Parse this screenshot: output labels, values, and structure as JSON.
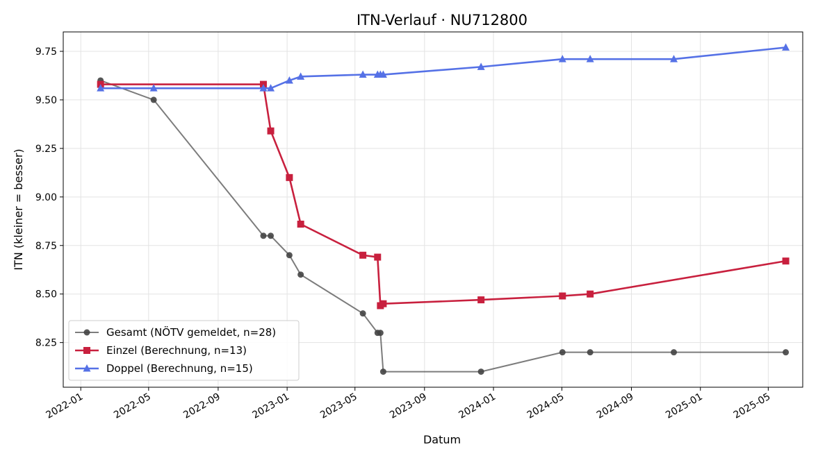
{
  "chart_data": {
    "type": "line",
    "title": "ITN-Verlauf · NU712800",
    "xlabel": "Datum",
    "ylabel": "ITN  (kleiner = besser)",
    "x_axis": "date",
    "xlim": [
      "2021-12-01",
      "2025-07-01"
    ],
    "ylim": [
      8.02,
      9.85
    ],
    "yticks": [
      8.25,
      8.5,
      8.75,
      9.0,
      9.25,
      9.5,
      9.75
    ],
    "ytick_labels": [
      "8.25",
      "8.50",
      "8.75",
      "9.00",
      "9.25",
      "9.50",
      "9.75"
    ],
    "xticks": [
      "2022-01-01",
      "2022-05-01",
      "2022-09-01",
      "2023-01-01",
      "2023-05-01",
      "2023-09-01",
      "2024-01-01",
      "2024-05-01",
      "2024-09-01",
      "2025-01-01",
      "2025-05-01"
    ],
    "xtick_labels": [
      "2022-01",
      "2022-05",
      "2022-09",
      "2023-01",
      "2023-05",
      "2023-09",
      "2024-01",
      "2024-05",
      "2024-09",
      "2025-01",
      "2025-05"
    ],
    "grid": true,
    "legend_position": "lower-left",
    "series": [
      {
        "name": "Gesamt (NÖTV gemeldet, n=28)",
        "color": "#444444",
        "marker": "circle",
        "points": [
          {
            "x": "2022-02-05",
            "y": 9.6
          },
          {
            "x": "2022-05-10",
            "y": 9.5
          },
          {
            "x": "2022-11-20",
            "y": 8.8
          },
          {
            "x": "2022-12-03",
            "y": 8.8
          },
          {
            "x": "2023-01-05",
            "y": 8.7
          },
          {
            "x": "2023-01-25",
            "y": 8.6
          },
          {
            "x": "2023-05-15",
            "y": 8.4
          },
          {
            "x": "2023-06-10",
            "y": 8.3
          },
          {
            "x": "2023-06-15",
            "y": 8.3
          },
          {
            "x": "2023-06-20",
            "y": 8.1
          },
          {
            "x": "2023-12-10",
            "y": 8.1
          },
          {
            "x": "2024-05-02",
            "y": 8.2
          },
          {
            "x": "2024-06-20",
            "y": 8.2
          },
          {
            "x": "2024-11-15",
            "y": 8.2
          },
          {
            "x": "2025-06-01",
            "y": 8.2
          }
        ]
      },
      {
        "name": "Einzel (Berechnung, n=13)",
        "color": "#c8203e",
        "marker": "square",
        "points": [
          {
            "x": "2022-02-05",
            "y": 9.58
          },
          {
            "x": "2022-11-20",
            "y": 9.58
          },
          {
            "x": "2022-12-03",
            "y": 9.34
          },
          {
            "x": "2023-01-05",
            "y": 9.1
          },
          {
            "x": "2023-01-25",
            "y": 8.86
          },
          {
            "x": "2023-05-15",
            "y": 8.7
          },
          {
            "x": "2023-06-10",
            "y": 8.69
          },
          {
            "x": "2023-06-15",
            "y": 8.44
          },
          {
            "x": "2023-06-20",
            "y": 8.45
          },
          {
            "x": "2023-12-10",
            "y": 8.47
          },
          {
            "x": "2024-05-02",
            "y": 8.49
          },
          {
            "x": "2024-06-20",
            "y": 8.5
          },
          {
            "x": "2025-06-01",
            "y": 8.67
          }
        ]
      },
      {
        "name": "Doppel (Berechnung, n=15)",
        "color": "#5571e6",
        "marker": "triangle",
        "points": [
          {
            "x": "2022-02-05",
            "y": 9.56
          },
          {
            "x": "2022-05-10",
            "y": 9.56
          },
          {
            "x": "2022-11-20",
            "y": 9.56
          },
          {
            "x": "2022-12-03",
            "y": 9.56
          },
          {
            "x": "2023-01-05",
            "y": 9.6
          },
          {
            "x": "2023-01-25",
            "y": 9.62
          },
          {
            "x": "2023-05-15",
            "y": 9.63
          },
          {
            "x": "2023-06-10",
            "y": 9.63
          },
          {
            "x": "2023-06-15",
            "y": 9.63
          },
          {
            "x": "2023-06-20",
            "y": 9.63
          },
          {
            "x": "2023-12-10",
            "y": 9.67
          },
          {
            "x": "2024-05-02",
            "y": 9.71
          },
          {
            "x": "2024-06-20",
            "y": 9.71
          },
          {
            "x": "2024-11-15",
            "y": 9.71
          },
          {
            "x": "2025-06-01",
            "y": 9.77
          }
        ]
      }
    ]
  }
}
